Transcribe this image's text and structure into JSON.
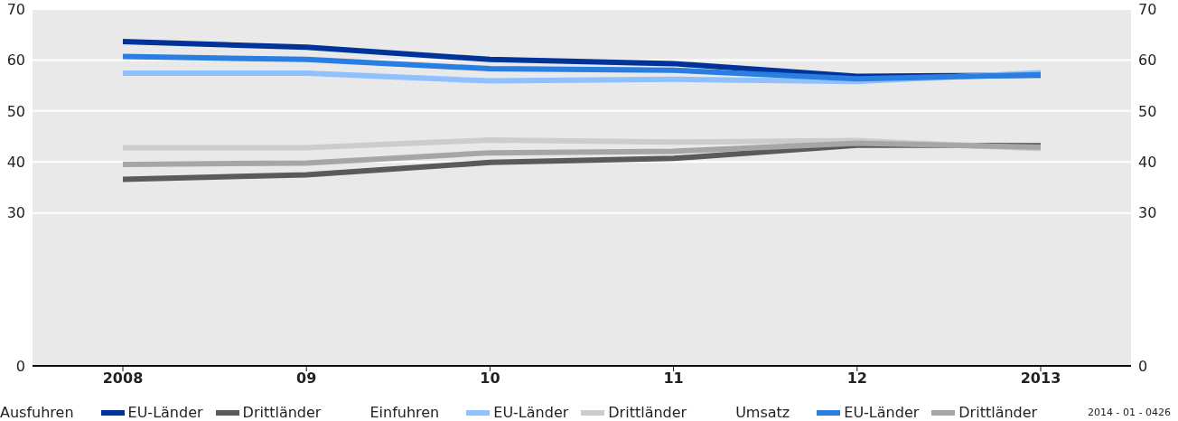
{
  "chart_data": {
    "type": "line",
    "categories": [
      "2008",
      "09",
      "10",
      "11",
      "12",
      "2013"
    ],
    "series": [
      {
        "name": "EU-Länder",
        "color": "#003399",
        "values": [
          63.6,
          62.5,
          60.1,
          59.3,
          56.8,
          57.0
        ]
      },
      {
        "name": "Drittländer",
        "color": "#5a5a5a",
        "values": [
          36.6,
          37.5,
          39.9,
          40.7,
          43.3,
          43.2
        ]
      },
      {
        "name": "EU-Länder",
        "color": "#8fc1ff",
        "values": [
          57.4,
          57.4,
          55.9,
          56.2,
          55.8,
          57.5
        ]
      },
      {
        "name": "Drittländer",
        "color": "#cccccc",
        "values": [
          42.8,
          42.8,
          44.3,
          43.9,
          44.2,
          42.6
        ]
      },
      {
        "name": "EU-Länder",
        "color": "#2a7de1",
        "values": [
          60.7,
          60.1,
          58.3,
          58.0,
          56.3,
          57.1
        ]
      },
      {
        "name": "Drittländer",
        "color": "#a6a6a6",
        "values": [
          39.5,
          39.8,
          41.8,
          42.1,
          43.7,
          42.9
        ]
      }
    ],
    "ylim": [
      0,
      70
    ],
    "yticks": [
      0,
      30,
      40,
      50,
      60,
      70
    ],
    "y2lim": [
      0,
      70
    ],
    "y2ticks": [
      0,
      30,
      40,
      50,
      60,
      70
    ],
    "grid": "y",
    "legend": "bottom",
    "marker": "none",
    "line_style": "solid",
    "annotations": [
      "Ausfuhren",
      "Einfuhren",
      "Umsatz",
      "2014 - 01 - 0426"
    ]
  }
}
